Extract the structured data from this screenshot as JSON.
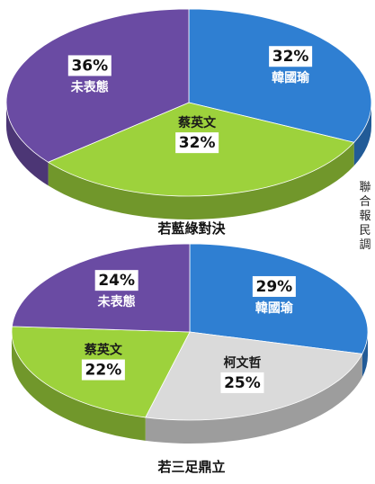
{
  "source": "聯合報民調",
  "chart_data": [
    {
      "type": "pie",
      "title": "若藍綠對決",
      "slices": [
        {
          "label": "韓國瑜",
          "value": 32,
          "value_text": "32%",
          "color": "#2f7fd2"
        },
        {
          "label": "蔡英文",
          "value": 32,
          "value_text": "32%",
          "color": "#9dd23c"
        },
        {
          "label": "未表態",
          "value": 36,
          "value_text": "36%",
          "color": "#6a4ba3"
        }
      ]
    },
    {
      "type": "pie",
      "title": "若三足鼎立",
      "slices": [
        {
          "label": "韓國瑜",
          "value": 29,
          "value_text": "29%",
          "color": "#2f7fd2"
        },
        {
          "label": "柯文哲",
          "value": 25,
          "value_text": "25%",
          "color": "#dadada"
        },
        {
          "label": "蔡英文",
          "value": 22,
          "value_text": "22%",
          "color": "#9dd23c"
        },
        {
          "label": "未表態",
          "value": 24,
          "value_text": "24%",
          "color": "#6a4ba3"
        }
      ]
    }
  ]
}
